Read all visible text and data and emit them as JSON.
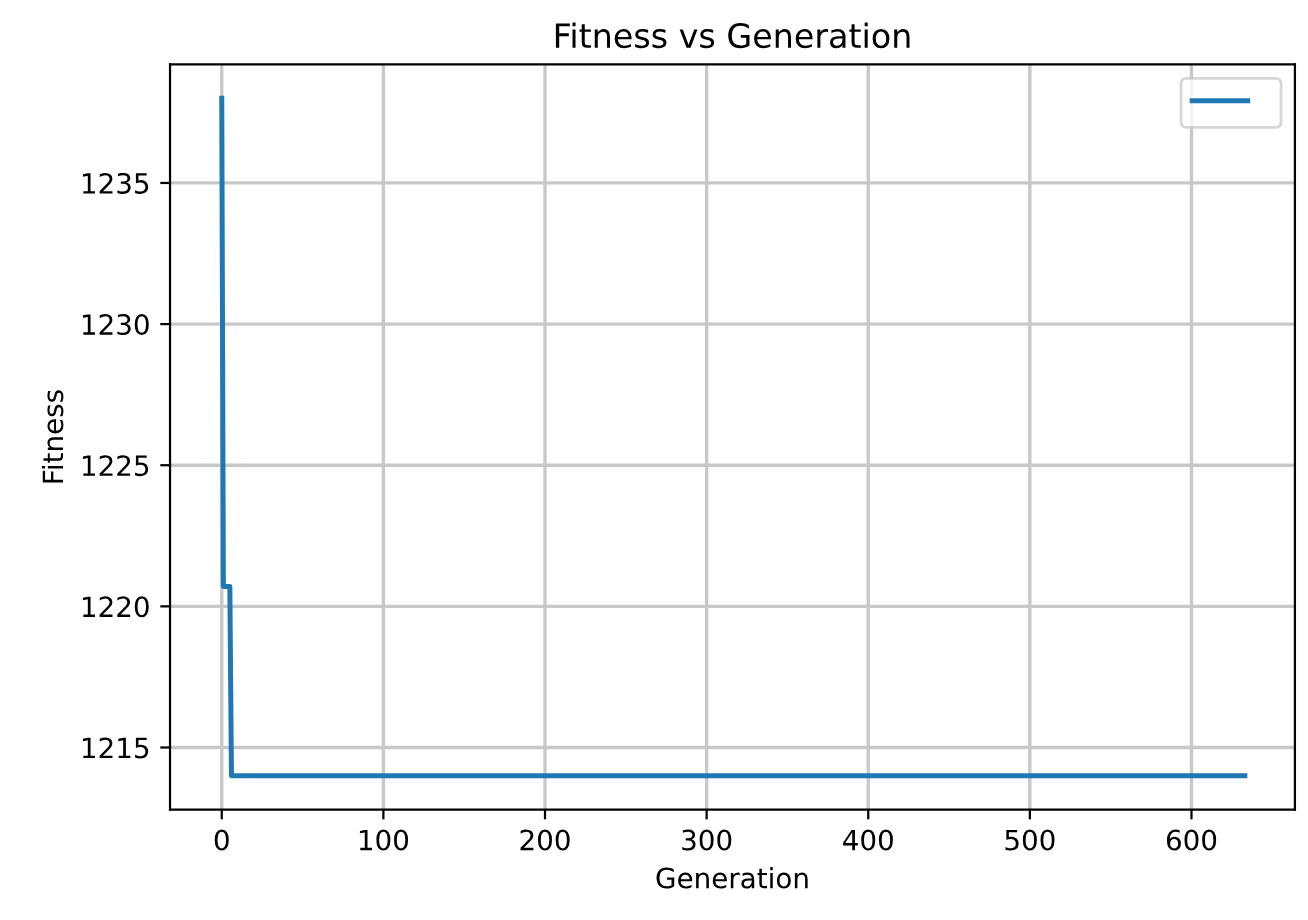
{
  "chart_data": {
    "type": "line",
    "title": "Fitness vs Generation",
    "xlabel": "Generation",
    "ylabel": "Fitness",
    "series": [
      {
        "color": "#1f77b4",
        "x": [
          0,
          1,
          5,
          6,
          633
        ],
        "values": [
          1238.0,
          1220.7,
          1220.7,
          1214.0,
          1214.0
        ]
      }
    ],
    "xlim": [
      -32,
      664
    ],
    "ylim": [
      1212.8,
      1239.2
    ],
    "xticks": [
      0,
      100,
      200,
      300,
      400,
      500,
      600
    ],
    "yticks": [
      1215,
      1220,
      1225,
      1230,
      1235
    ],
    "grid": true
  }
}
